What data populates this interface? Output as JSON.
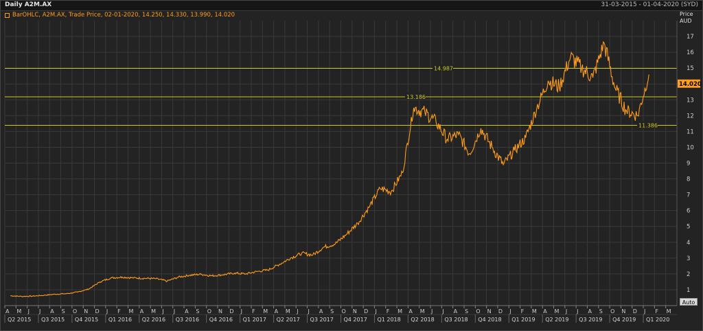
{
  "header": {
    "title": "Daily A2M.AX",
    "range": "31-03-2015 - 01-04-2020 (SYD)"
  },
  "legend_text": "BarOHLC, A2M.AX, Trade Price, 02-01-2020, 14.250, 14.330, 13.990, 14.020",
  "axis_label": {
    "line1": "Price",
    "line2": "AUD"
  },
  "auto_label": "Auto",
  "colors": {
    "price": "#ff9d1c",
    "hline": "#cccc22",
    "last_box": "#ff9d1c",
    "grid": "#3a3a3a"
  },
  "chart_data": {
    "type": "line",
    "ylim": [
      0,
      18
    ],
    "yticks": [
      1,
      2,
      3,
      4,
      5,
      6,
      7,
      8,
      9,
      10,
      11,
      12,
      13,
      14,
      15,
      16,
      17
    ],
    "last_value": "14.020",
    "horizontal_lines": [
      {
        "value": 14.987,
        "label": "14.987"
      },
      {
        "value": 13.186,
        "label": "13.186"
      },
      {
        "value": 11.386,
        "label": "11.386"
      }
    ],
    "month_ticks": [
      "A",
      "M",
      "J",
      "J",
      "A",
      "S",
      "O",
      "N",
      "D",
      "J",
      "F",
      "M",
      "A",
      "M",
      "J",
      "J",
      "A",
      "S",
      "O",
      "N",
      "D",
      "J",
      "F",
      "M",
      "A",
      "M",
      "J",
      "J",
      "A",
      "S",
      "O",
      "N",
      "D",
      "J",
      "F",
      "M",
      "A",
      "M",
      "J",
      "J",
      "A",
      "S",
      "O",
      "N",
      "D",
      "J",
      "F",
      "M",
      "A",
      "M",
      "J",
      "J",
      "A",
      "S",
      "O",
      "N",
      "D",
      "J",
      "F",
      "M"
    ],
    "quarter_ticks": [
      "Q2 2015",
      "Q3 2015",
      "Q4 2015",
      "Q1 2016",
      "Q2 2016",
      "Q3 2016",
      "Q4 2016",
      "Q1 2017",
      "Q2 2017",
      "Q3 2017",
      "Q4 2017",
      "Q1 2018",
      "Q2 2018",
      "Q3 2018",
      "Q4 2018",
      "Q1 2019",
      "Q2 2019",
      "Q3 2019",
      "Q4 2019",
      "Q1 2020"
    ],
    "x_start": "2015-04",
    "series": [
      {
        "x": [
          "2015-04",
          "2015-05",
          "2015-06",
          "2015-07",
          "2015-08",
          "2015-09",
          "2015-10",
          "2015-11",
          "2015-12",
          "2016-01",
          "2016-02",
          "2016-03",
          "2016-04",
          "2016-05",
          "2016-06",
          "2016-07",
          "2016-08",
          "2016-09",
          "2016-10",
          "2016-11",
          "2016-12",
          "2017-01",
          "2017-02",
          "2017-03",
          "2017-04",
          "2017-05",
          "2017-06",
          "2017-07",
          "2017-08",
          "2017-09",
          "2017-10",
          "2017-11",
          "2017-12",
          "2018-01",
          "2018-02",
          "2018-03",
          "2018-04",
          "2018-05",
          "2018-06",
          "2018-07",
          "2018-08",
          "2018-09",
          "2018-10",
          "2018-11",
          "2018-12",
          "2019-01",
          "2019-02",
          "2019-03",
          "2019-04",
          "2019-05",
          "2019-06",
          "2019-07",
          "2019-08",
          "2019-09",
          "2019-10",
          "2019-11",
          "2019-12",
          "2020-01"
        ],
        "values": [
          0.62,
          0.58,
          0.6,
          0.65,
          0.72,
          0.75,
          0.85,
          1.05,
          1.5,
          1.75,
          1.8,
          1.75,
          1.72,
          1.7,
          1.55,
          1.8,
          1.92,
          1.98,
          1.88,
          1.95,
          2.05,
          2.0,
          2.15,
          2.25,
          2.6,
          3.0,
          3.3,
          3.2,
          3.7,
          3.9,
          4.5,
          5.2,
          6.2,
          7.4,
          7.2,
          8.4,
          12.5,
          12.2,
          11.6,
          10.5,
          10.8,
          9.6,
          11.2,
          10.0,
          8.9,
          9.8,
          10.6,
          12.5,
          14.2,
          13.8,
          15.7,
          15.0,
          14.4,
          16.6,
          13.7,
          12.3,
          12.0,
          14.6
        ]
      }
    ]
  }
}
